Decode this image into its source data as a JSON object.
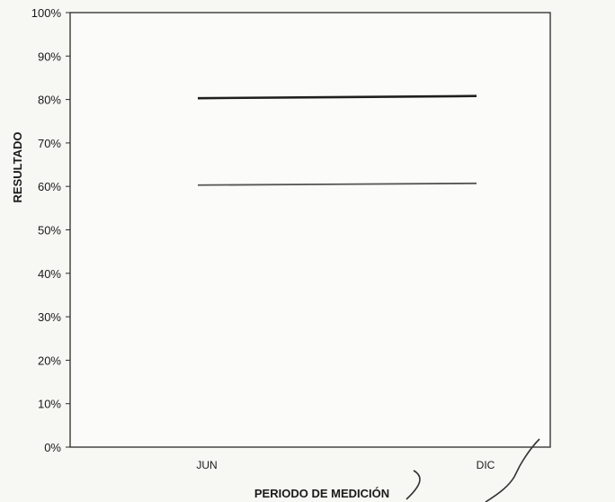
{
  "chart_data": {
    "type": "line",
    "title": "",
    "xlabel": "PERIODO DE MEDICIÓN",
    "ylabel": "RESULTADO",
    "categories": [
      "JUN",
      "DIC"
    ],
    "ylim": [
      0,
      1
    ],
    "yticks": [
      "0%",
      "10%",
      "20%",
      "30%",
      "40%",
      "50%",
      "60%",
      "70%",
      "80%",
      "90%",
      "100%"
    ],
    "grid": false,
    "legend": "none",
    "series": [
      {
        "values": [
          0.803,
          0.808
        ],
        "color": "#1f1f1f"
      },
      {
        "values": [
          0.603,
          0.607
        ],
        "color": "#555555"
      }
    ]
  }
}
